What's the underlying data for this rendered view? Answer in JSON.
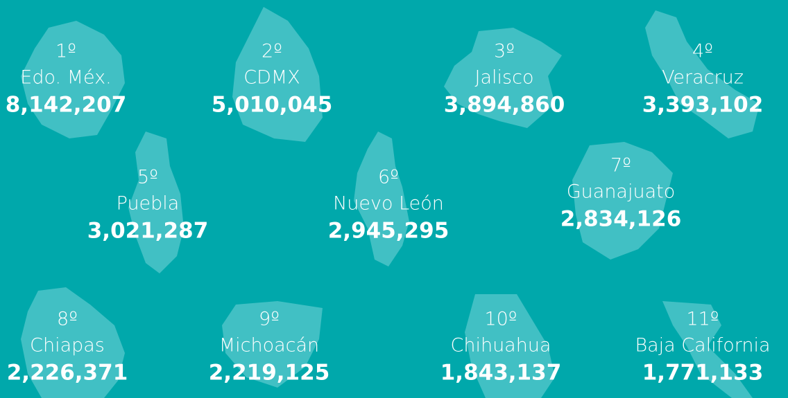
{
  "items": [
    {
      "rank": "1º",
      "name": "Edo. Méx.",
      "value": "8,142,207"
    },
    {
      "rank": "2º",
      "name": "CDMX",
      "value": "5,010,045"
    },
    {
      "rank": "3º",
      "name": "Jalisco",
      "value": "3,894,860"
    },
    {
      "rank": "4º",
      "name": "Veracruz",
      "value": "3,393,102"
    },
    {
      "rank": "5º",
      "name": "Puebla",
      "value": "3,021,287"
    },
    {
      "rank": "6º",
      "name": "Nuevo León",
      "value": "2,945,295"
    },
    {
      "rank": "7º",
      "name": "Guanajuato",
      "value": "2,834,126"
    },
    {
      "rank": "8º",
      "name": "Chiapas",
      "value": "2,226,371"
    },
    {
      "rank": "9º",
      "name": "Michoacán",
      "value": "2,219,125"
    },
    {
      "rank": "10º",
      "name": "Chihuahua",
      "value": "1,843,137"
    },
    {
      "rank": "11º",
      "name": "Baja California",
      "value": "1,771,133"
    }
  ]
}
